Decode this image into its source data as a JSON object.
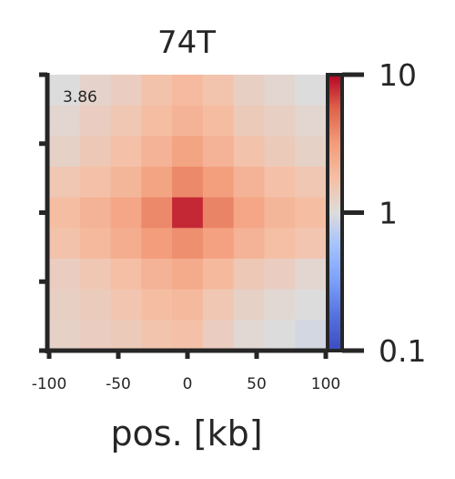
{
  "chart_data": {
    "type": "heatmap",
    "title": "74T",
    "xlabel": "pos. [kb]",
    "ylabel": "",
    "annotation": "3.86",
    "x_ticks": [
      "-100",
      "-50",
      "0",
      "50",
      "100"
    ],
    "xlim": [
      -100,
      100
    ],
    "ylim": [
      -100,
      100
    ],
    "colorbar": {
      "scale": "log",
      "range": [
        0.1,
        10
      ],
      "ticks": [
        "10",
        "1",
        "0.1"
      ],
      "colormap": "coolwarm"
    },
    "grid_size": 9,
    "values": [
      [
        1.0,
        1.2,
        1.35,
        1.7,
        1.95,
        1.65,
        1.3,
        1.15,
        1.0
      ],
      [
        1.15,
        1.35,
        1.55,
        1.85,
        2.2,
        1.9,
        1.45,
        1.3,
        1.15
      ],
      [
        1.25,
        1.5,
        1.75,
        2.2,
        2.8,
        2.2,
        1.7,
        1.45,
        1.25
      ],
      [
        1.55,
        1.75,
        2.1,
        2.8,
        3.8,
        3.0,
        2.2,
        1.75,
        1.55
      ],
      [
        1.85,
        2.2,
        2.7,
        3.8,
        8.0,
        4.0,
        2.7,
        2.1,
        1.85
      ],
      [
        1.7,
        2.0,
        2.4,
        3.1,
        3.6,
        2.9,
        2.2,
        1.8,
        1.6
      ],
      [
        1.35,
        1.55,
        1.8,
        2.2,
        2.5,
        2.0,
        1.5,
        1.35,
        1.15
      ],
      [
        1.3,
        1.4,
        1.6,
        1.85,
        2.0,
        1.55,
        1.25,
        1.1,
        1.0
      ],
      [
        1.25,
        1.35,
        1.45,
        1.65,
        1.75,
        1.35,
        1.1,
        1.0,
        0.9
      ]
    ]
  }
}
